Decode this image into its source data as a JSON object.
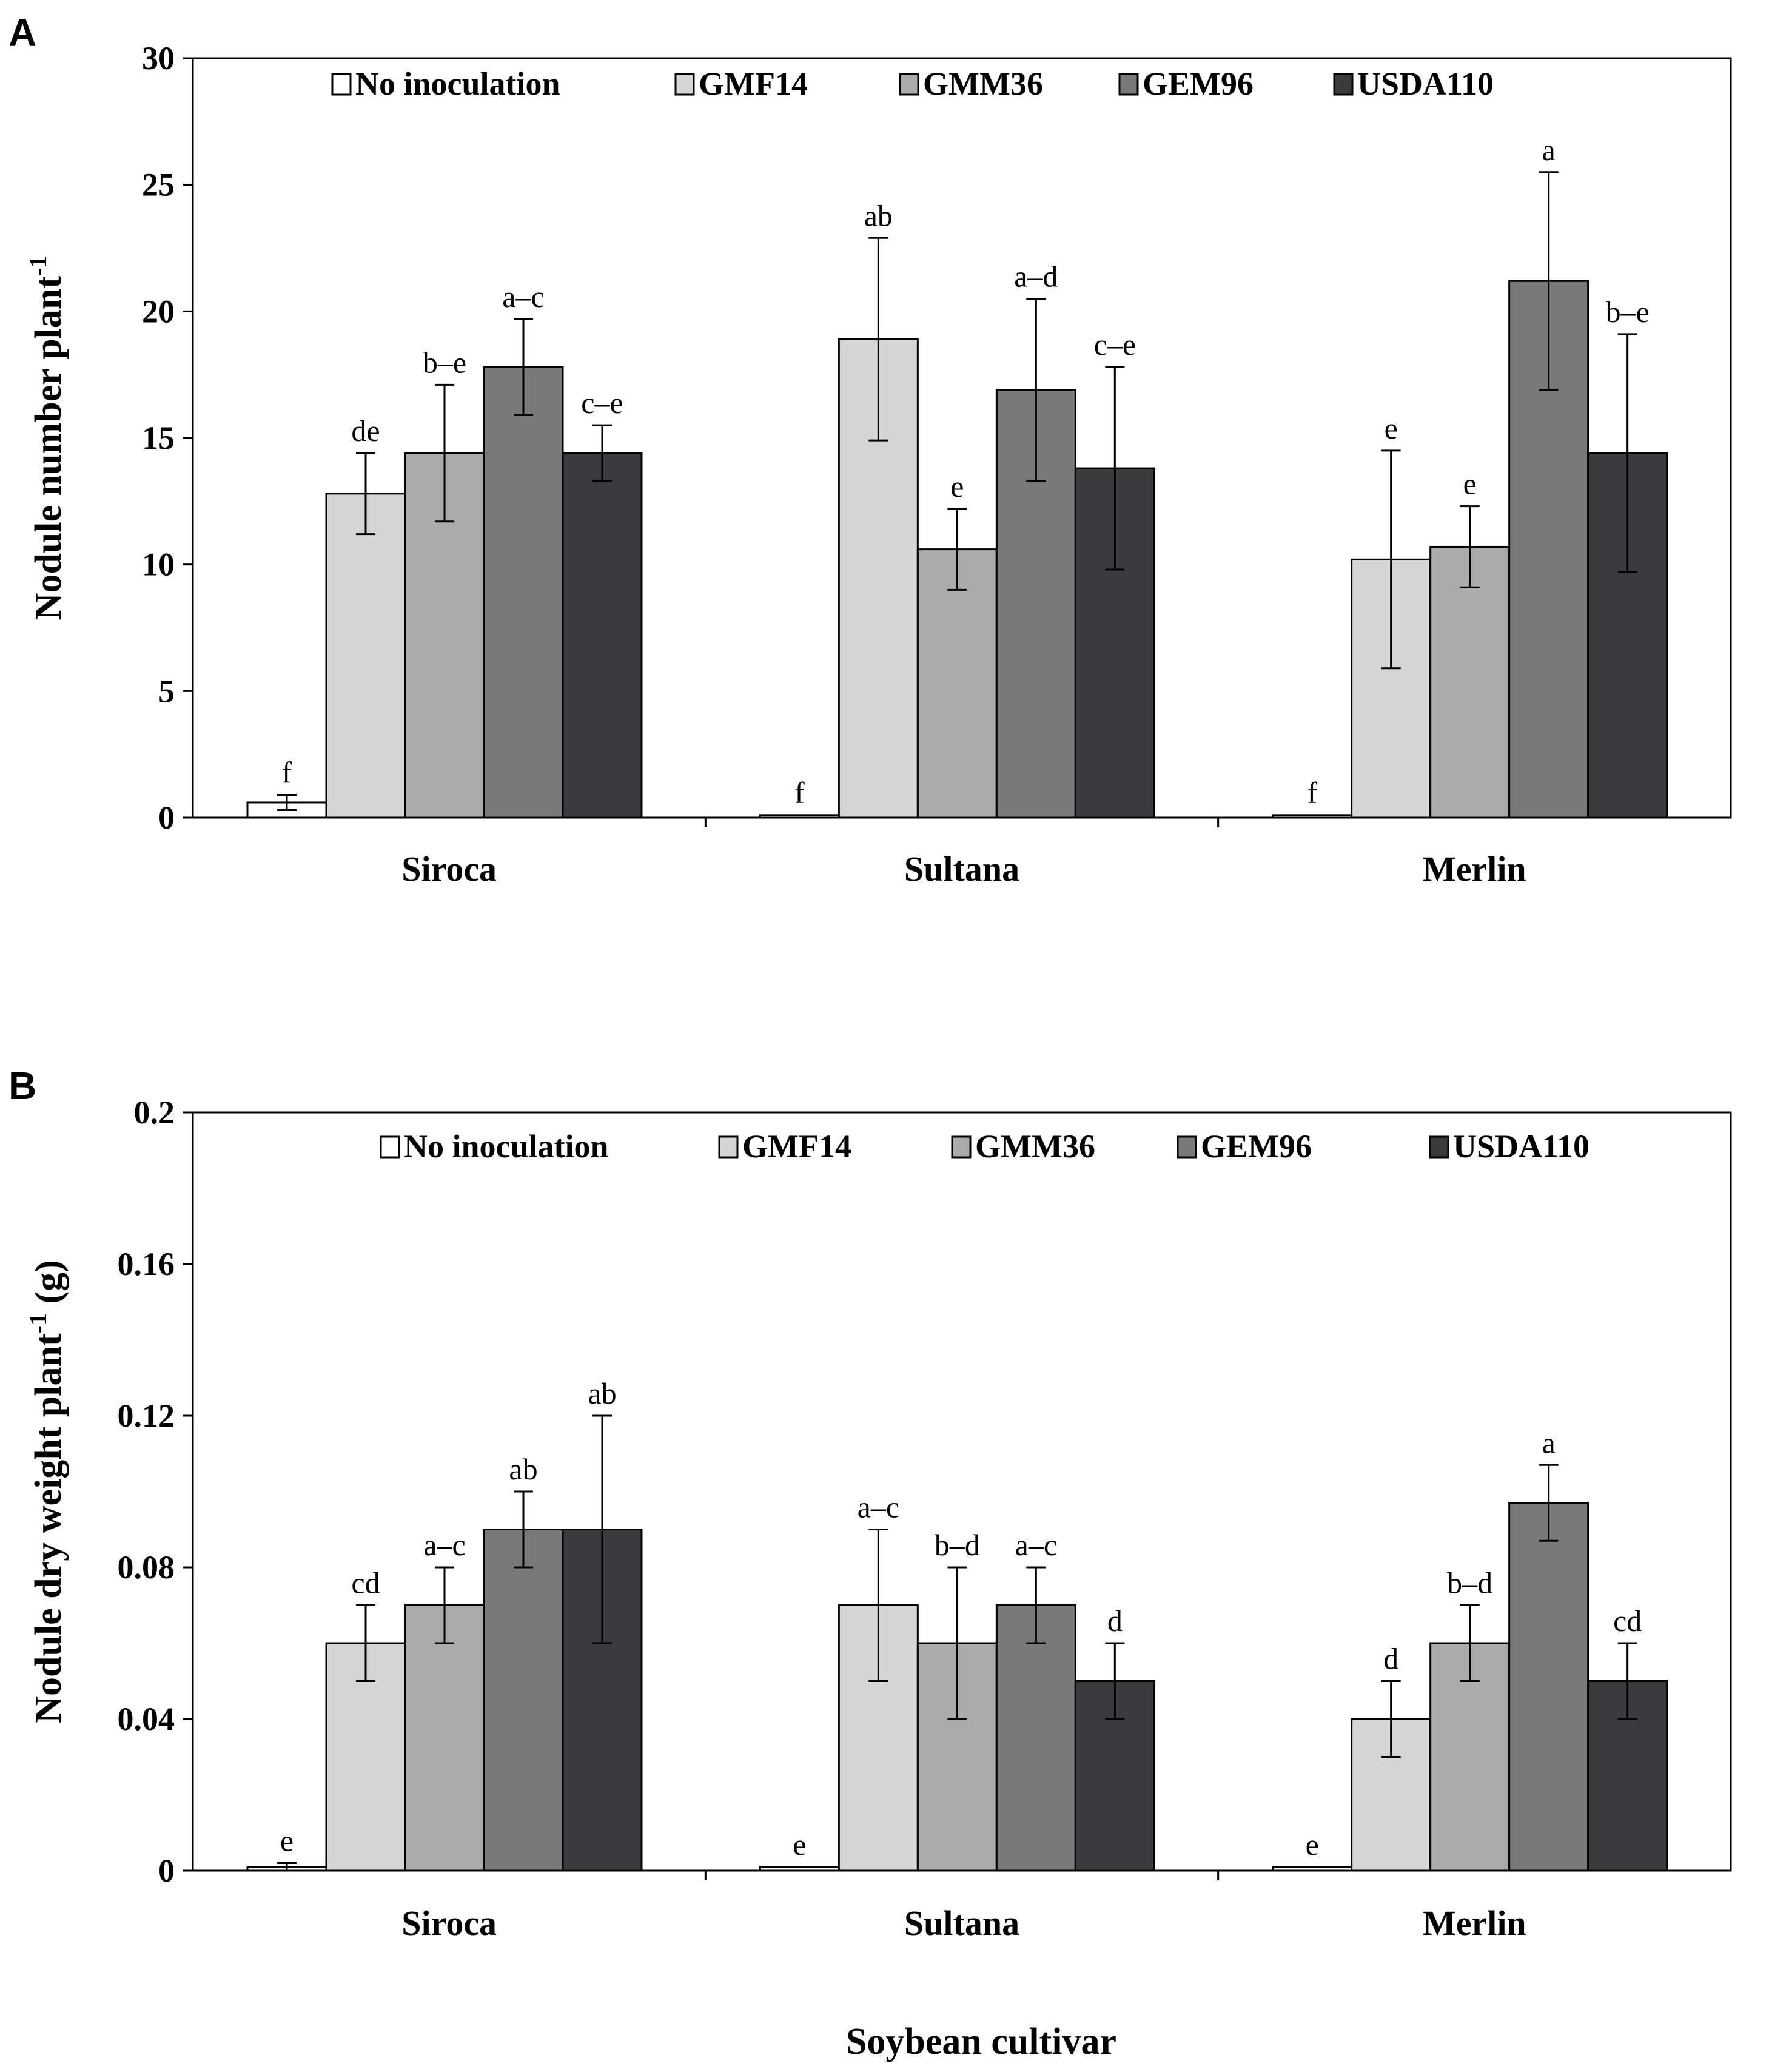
{
  "figure": {
    "shared_xlabel": "Soybean cultivar"
  },
  "chart_data": [
    {
      "panel": "A",
      "type": "bar",
      "title": "",
      "ylabel": "Nodule number plant",
      "ylabel_superscript": "-1",
      "ylabel_suffix": "",
      "ylim": [
        0,
        30
      ],
      "yticks": [
        0,
        5,
        10,
        15,
        20,
        25,
        30
      ],
      "ytick_labels": [
        "0",
        "5",
        "10",
        "15",
        "20",
        "25",
        "30"
      ],
      "categories": [
        "Siroca",
        "Sultana",
        "Merlin"
      ],
      "legend": "top",
      "series": [
        {
          "name": "No inoculation",
          "color": "#ffffff",
          "values": [
            0.6,
            0.1,
            0.1
          ],
          "errors": [
            0.3,
            0,
            0
          ],
          "labels": [
            "f",
            "f",
            "f"
          ]
        },
        {
          "name": "GMF14",
          "color": "#d6d6d6",
          "values": [
            12.8,
            18.9,
            10.2
          ],
          "errors": [
            1.6,
            4.0,
            4.3
          ],
          "labels": [
            "de",
            "ab",
            "e"
          ]
        },
        {
          "name": "GMM36",
          "color": "#ababab",
          "values": [
            14.4,
            10.6,
            10.7
          ],
          "errors": [
            2.7,
            1.6,
            1.6
          ],
          "labels": [
            "b–e",
            "e",
            "e"
          ]
        },
        {
          "name": "GEM96",
          "color": "#797979",
          "values": [
            17.8,
            16.9,
            21.2
          ],
          "errors": [
            1.9,
            3.6,
            4.3
          ],
          "labels": [
            "a–c",
            "a–d",
            "a"
          ]
        },
        {
          "name": "USDA110",
          "color": "#3b3a3c",
          "values": [
            14.4,
            13.8,
            14.4
          ],
          "errors": [
            1.1,
            4.0,
            4.7
          ],
          "labels": [
            "c–e",
            "c–e",
            "b–e"
          ]
        }
      ]
    },
    {
      "panel": "B",
      "type": "bar",
      "title": "",
      "ylabel": "Nodule dry weight plant",
      "ylabel_superscript": "-1",
      "ylabel_suffix": " (g)",
      "ylim": [
        0,
        0.2
      ],
      "yticks": [
        0,
        0.04,
        0.08,
        0.12,
        0.16,
        0.2
      ],
      "ytick_labels": [
        "0",
        "0.04",
        "0.08",
        "0.12",
        "0.16",
        "0.2"
      ],
      "categories": [
        "Siroca",
        "Sultana",
        "Merlin"
      ],
      "legend": "top",
      "series": [
        {
          "name": "No inoculation",
          "color": "#ffffff",
          "values": [
            0.001,
            0.001,
            0.001
          ],
          "errors": [
            0.001,
            0,
            0
          ],
          "labels": [
            "e",
            "e",
            "e"
          ]
        },
        {
          "name": "GMF14",
          "color": "#d6d6d6",
          "values": [
            0.06,
            0.07,
            0.04
          ],
          "errors": [
            0.01,
            0.02,
            0.01
          ],
          "labels": [
            "cd",
            "a–c",
            "d"
          ]
        },
        {
          "name": "GMM36",
          "color": "#ababab",
          "values": [
            0.07,
            0.06,
            0.06
          ],
          "errors": [
            0.01,
            0.02,
            0.01
          ],
          "labels": [
            "a–c",
            "b–d",
            "b–d"
          ]
        },
        {
          "name": "GEM96",
          "color": "#797979",
          "values": [
            0.09,
            0.07,
            0.097
          ],
          "errors": [
            0.01,
            0.01,
            0.01
          ],
          "labels": [
            "ab",
            "a–c",
            "a"
          ]
        },
        {
          "name": "USDA110",
          "color": "#3b3a3c",
          "values": [
            0.09,
            0.05,
            0.05
          ],
          "errors": [
            0.03,
            0.01,
            0.01
          ],
          "labels": [
            "ab",
            "d",
            "cd"
          ]
        }
      ]
    }
  ]
}
